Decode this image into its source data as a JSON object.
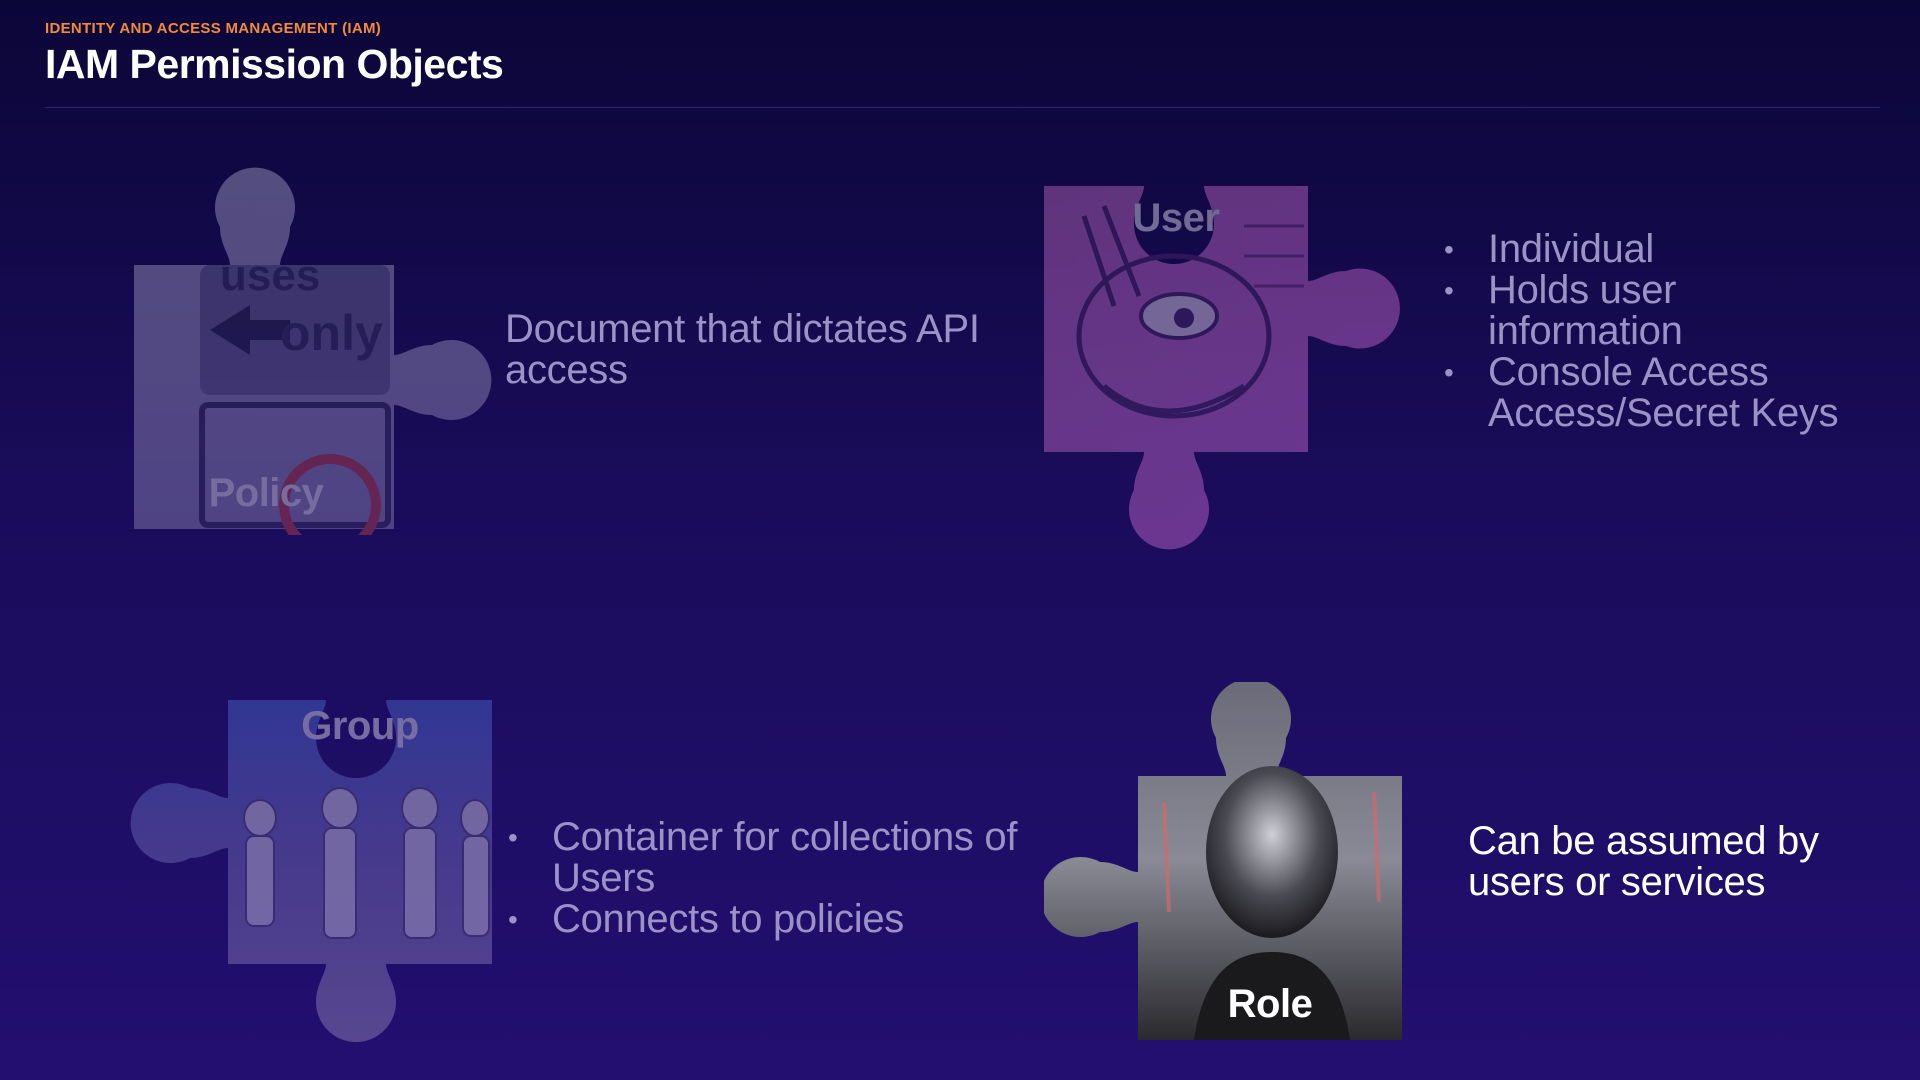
{
  "header": {
    "eyebrow": "IDENTITY AND ACCESS MANAGEMENT (IAM)",
    "title": "IAM Permission Objects"
  },
  "policy": {
    "label": "Policy",
    "icon": "puzzle-piece-road-sign",
    "sign_text": "uses only",
    "description": "Document that dictates API access"
  },
  "user": {
    "label": "User",
    "icon": "puzzle-piece-rabbit-mural",
    "bullets": [
      "Individual",
      "Holds user information",
      "Console Access Access/Secret Keys"
    ]
  },
  "group": {
    "label": "Group",
    "icon": "puzzle-piece-stormtroopers",
    "bullets": [
      "Container for collections of Users",
      "Connects to policies"
    ]
  },
  "role": {
    "label": "Role",
    "icon": "puzzle-piece-masked-person",
    "description": "Can be assumed by users or services"
  },
  "colors": {
    "accent": "#f08a3c",
    "background_top": "#0b0638",
    "background_bottom": "#220f70",
    "muted_text": "#9b92c6",
    "bright_text": "#ffffff"
  }
}
